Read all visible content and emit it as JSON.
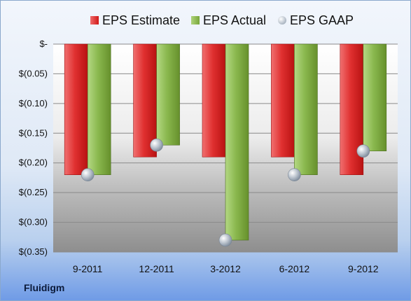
{
  "chart_data": {
    "type": "bar",
    "categories": [
      "9-2011",
      "12-2011",
      "3-2012",
      "6-2012",
      "9-2012"
    ],
    "series": [
      {
        "name": "EPS Estimate",
        "values": [
          -0.22,
          -0.19,
          -0.19,
          -0.19,
          -0.22
        ],
        "color": "#d42020",
        "kind": "bar"
      },
      {
        "name": "EPS Actual",
        "values": [
          -0.22,
          -0.17,
          -0.33,
          -0.22,
          -0.18
        ],
        "color": "#7fab40",
        "kind": "bar"
      },
      {
        "name": "EPS GAAP",
        "values": [
          -0.22,
          -0.17,
          -0.33,
          -0.22,
          -0.18
        ],
        "color": "#a9b4c0",
        "kind": "marker"
      }
    ],
    "y_ticks": [
      0,
      -0.05,
      -0.1,
      -0.15,
      -0.2,
      -0.25,
      -0.3,
      -0.35
    ],
    "y_tick_labels": [
      "$-",
      "$(0.05)",
      "$(0.10)",
      "$(0.15)",
      "$(0.20)",
      "$(0.25)",
      "$(0.30)",
      "$(0.35)"
    ],
    "ylim": [
      -0.35,
      0
    ],
    "grid": true,
    "legend_position": "top"
  },
  "legend": {
    "estimate": "EPS Estimate",
    "actual": "EPS Actual",
    "gaap": "EPS GAAP"
  },
  "company": "Fluidigm"
}
